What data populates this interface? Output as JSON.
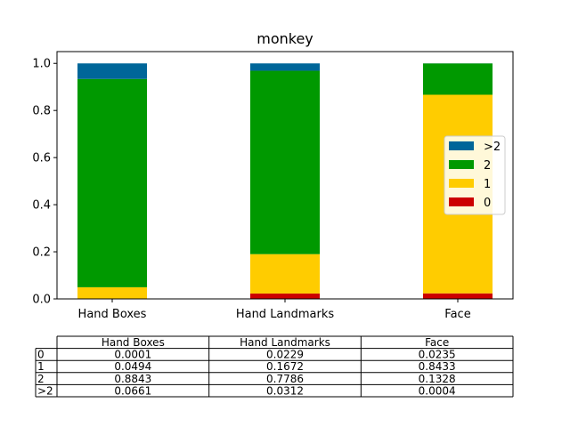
{
  "chart_data": {
    "type": "bar",
    "stacked": true,
    "title": "monkey",
    "xlabel": "",
    "ylabel": "",
    "ylim": [
      0,
      1.05
    ],
    "yticks": [
      "0.0",
      "0.2",
      "0.4",
      "0.6",
      "0.8",
      "1.0"
    ],
    "grid": false,
    "legend_position": "center-right",
    "categories": [
      "Hand Boxes",
      "Hand Landmarks",
      "Face"
    ],
    "series": [
      {
        "name": "0",
        "color": "#cc0000",
        "values": [
          0.0001,
          0.0229,
          0.0235
        ]
      },
      {
        "name": "1",
        "color": "#ffcc00",
        "values": [
          0.0494,
          0.1672,
          0.8433
        ]
      },
      {
        "name": "2",
        "color": "#009900",
        "values": [
          0.8843,
          0.7786,
          0.1328
        ]
      },
      {
        "name": ">2",
        "color": "#006699",
        "values": [
          0.0661,
          0.0312,
          0.0004
        ]
      }
    ],
    "legend_order": [
      ">2",
      "2",
      "1",
      "0"
    ]
  },
  "table": {
    "columns": [
      "Hand Boxes",
      "Hand Landmarks",
      "Face"
    ],
    "rows": [
      {
        "label": "0",
        "cells": [
          "0.0001",
          "0.0229",
          "0.0235"
        ]
      },
      {
        "label": "1",
        "cells": [
          "0.0494",
          "0.1672",
          "0.8433"
        ]
      },
      {
        "label": "2",
        "cells": [
          "0.8843",
          "0.7786",
          "0.1328"
        ]
      },
      {
        "label": ">2",
        "cells": [
          "0.0661",
          "0.0312",
          "0.0004"
        ]
      }
    ]
  }
}
